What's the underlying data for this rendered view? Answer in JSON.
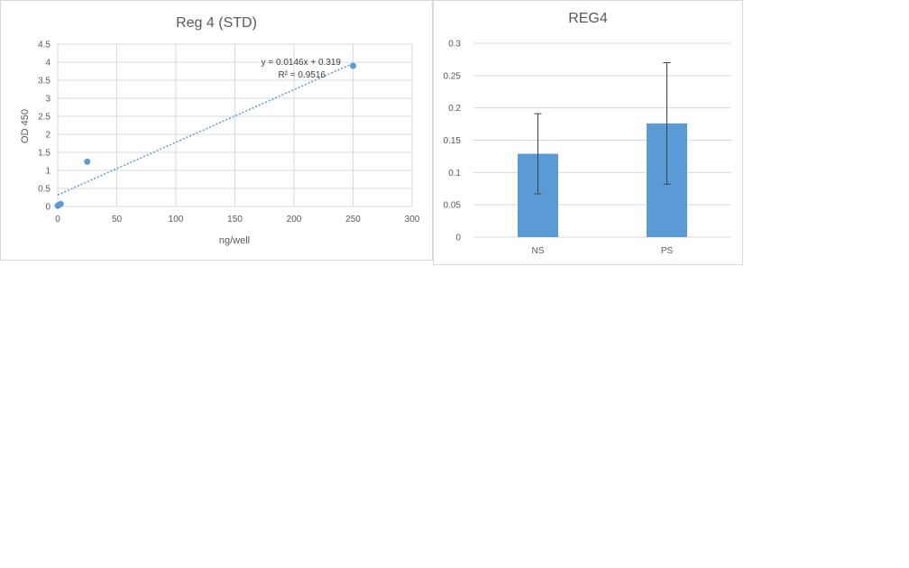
{
  "chart_data": [
    {
      "type": "scatter",
      "title": "Reg 4 (STD)",
      "xlabel": "ng/well",
      "ylabel": "OD 450",
      "xlim": [
        0,
        300
      ],
      "ylim": [
        0,
        4.5
      ],
      "x_ticks": [
        "0",
        "50",
        "100",
        "150",
        "200",
        "250",
        "300"
      ],
      "y_ticks": [
        "0",
        "0.5",
        "1",
        "1.5",
        "2",
        "2.5",
        "3",
        "3.5",
        "4",
        "4.5"
      ],
      "grid": true,
      "points": [
        {
          "x": 0,
          "y": 0.02
        },
        {
          "x": 1,
          "y": 0.04
        },
        {
          "x": 2.5,
          "y": 0.07
        },
        {
          "x": 25,
          "y": 1.24
        },
        {
          "x": 250,
          "y": 3.9
        }
      ],
      "trendline": {
        "slope": 0.0146,
        "intercept": 0.319,
        "r2": 0.9516
      },
      "equation_label": "y = 0.0146x + 0.319",
      "r2_label": "R² = 0.9516",
      "colors": {
        "points": "#5b9bd5",
        "trend": "#5b9bd5"
      }
    },
    {
      "type": "bar",
      "title": "REG4",
      "categories": [
        "NS",
        "PS"
      ],
      "values": [
        0.129,
        0.176
      ],
      "errors": [
        0.062,
        0.094
      ],
      "ylim": [
        0,
        0.3
      ],
      "y_ticks": [
        "0",
        "0.05",
        "0.1",
        "0.15",
        "0.2",
        "0.25",
        "0.3"
      ],
      "grid": true,
      "colors": {
        "bar": "#5b9bd5",
        "error": "#404040"
      }
    }
  ]
}
